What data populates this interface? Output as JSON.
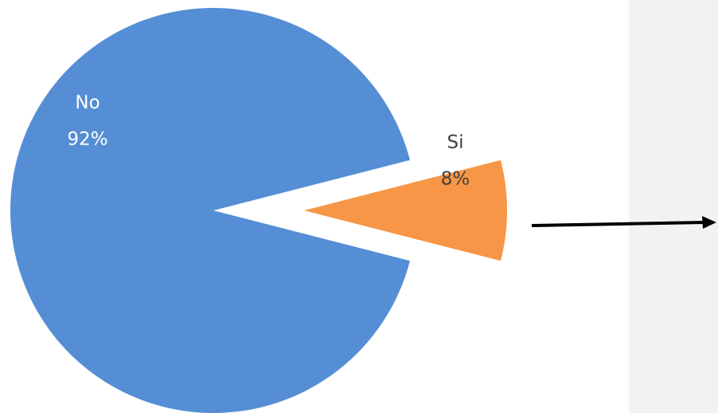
{
  "chart_data": {
    "type": "pie",
    "categories": [
      "No",
      "Si"
    ],
    "values": [
      92,
      8
    ],
    "value_labels": [
      "92%",
      "8%"
    ],
    "colors": [
      "#558ed5",
      "#f79646"
    ]
  }
}
